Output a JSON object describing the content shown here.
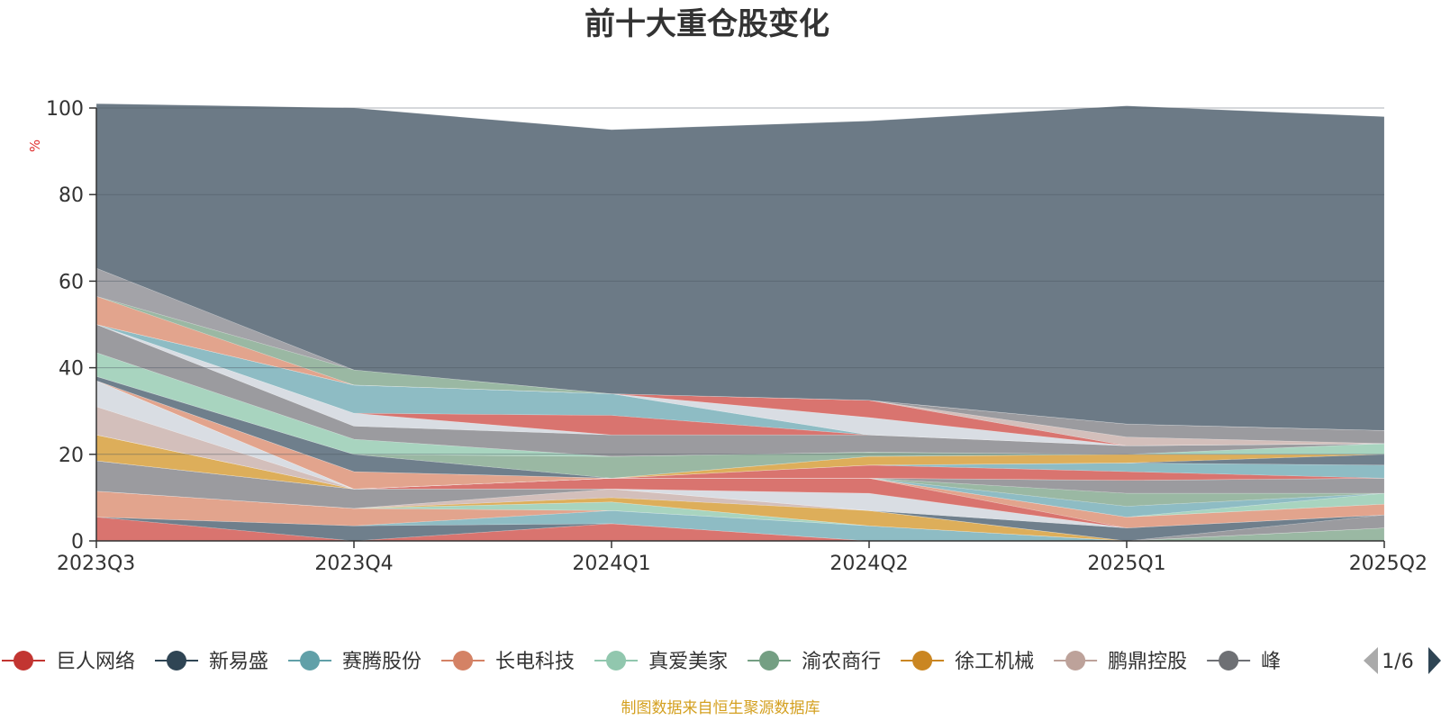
{
  "chart_data": {
    "type": "area",
    "stacked": true,
    "title": "前十大重仓股变化",
    "ylabel": "%",
    "ylim": [
      0,
      100
    ],
    "yticks": [
      0,
      20,
      40,
      60,
      80,
      100
    ],
    "grid": true,
    "categories": [
      "2023Q3",
      "2023Q4",
      "2024Q1",
      "2024Q2",
      "2025Q1",
      "2025Q2"
    ],
    "series": [
      {
        "name": "巨人网络",
        "color": "#d9746f",
        "values": [
          5.5,
          0,
          4,
          0,
          0,
          0
        ]
      },
      {
        "name": "新易盛",
        "color": "#6f7f8c",
        "values": [
          0,
          3.5,
          0,
          0,
          0,
          0
        ]
      },
      {
        "name": "赛腾股份",
        "color": "#8ebcc4",
        "values": [
          0,
          0,
          3,
          3.5,
          0,
          0
        ]
      },
      {
        "name": "长电科技",
        "color": "#e2a48d",
        "values": [
          6,
          4,
          0,
          0,
          0,
          0
        ]
      },
      {
        "name": "真爱美家",
        "color": "#a8d4bf",
        "values": [
          0,
          0,
          2,
          0,
          0,
          0
        ]
      },
      {
        "name": "渝农商行",
        "color": "#9ab8a3",
        "values": [
          0,
          0,
          0,
          0,
          0,
          3
        ]
      },
      {
        "name": "徐工机械",
        "color": "#ddae5a",
        "values": [
          0,
          0,
          1,
          3.5,
          0,
          0
        ]
      },
      {
        "name": "鹏鼎控股",
        "color": "#d3bfbb",
        "values": [
          0,
          0,
          2,
          0,
          0,
          0
        ]
      },
      {
        "name": "峰岹科技",
        "color": "#9b9b9f",
        "values": [
          7,
          4.5,
          0,
          0,
          0,
          3
        ]
      },
      {
        "name": "",
        "color": "#6f7f8c",
        "values": [
          0,
          0,
          0,
          0,
          3,
          0
        ]
      },
      {
        "name": "",
        "color": "#d9dde3",
        "values": [
          0,
          0,
          0,
          4,
          0,
          0
        ]
      },
      {
        "name": "",
        "color": "#d9746f",
        "values": [
          0,
          0,
          2.5,
          3.5,
          0,
          0
        ]
      },
      {
        "name": "",
        "color": "#e2a48d",
        "values": [
          0,
          0,
          0,
          0,
          2.5,
          2.5
        ]
      },
      {
        "name": "",
        "color": "#ddae5a",
        "values": [
          6,
          0,
          0,
          0,
          0,
          0
        ]
      },
      {
        "name": "",
        "color": "#a8d4bf",
        "values": [
          0,
          0,
          0,
          0,
          0,
          2.5
        ]
      },
      {
        "name": "",
        "color": "#8ebcc4",
        "values": [
          0,
          0,
          0,
          0,
          2.5,
          0
        ]
      },
      {
        "name": "",
        "color": "#9ab8a3",
        "values": [
          0,
          0,
          0,
          0,
          3,
          0
        ]
      },
      {
        "name": "",
        "color": "#9b9b9f",
        "values": [
          0,
          0,
          0,
          0,
          3,
          3.5
        ]
      },
      {
        "name": "",
        "color": "#d3bfbb",
        "values": [
          6.5,
          0,
          0,
          0,
          0,
          0
        ]
      },
      {
        "name": "",
        "color": "#d9dde3",
        "values": [
          6,
          0,
          0,
          0,
          0,
          0
        ]
      },
      {
        "name": "",
        "color": "#d9746f",
        "values": [
          0,
          0,
          0,
          3,
          2,
          0
        ]
      },
      {
        "name": "",
        "color": "#8ebcc4",
        "values": [
          0,
          0,
          0,
          0,
          2,
          3
        ]
      },
      {
        "name": "",
        "color": "#e2a48d",
        "values": [
          0,
          4,
          0,
          0,
          0,
          0
        ]
      },
      {
        "name": "",
        "color": "#6f7f8c",
        "values": [
          0,
          0,
          0,
          0,
          0,
          2.5
        ]
      },
      {
        "name": "",
        "color": "#ddae5a",
        "values": [
          0,
          0,
          0,
          2,
          2,
          0
        ]
      },
      {
        "name": "",
        "color": "#6f7f8c",
        "values": [
          1,
          4,
          0,
          0,
          0,
          0
        ]
      },
      {
        "name": "",
        "color": "#9ab8a3",
        "values": [
          0,
          0,
          5,
          1,
          0,
          0
        ]
      },
      {
        "name": "",
        "color": "#a8d4bf",
        "values": [
          5.5,
          3.5,
          0,
          0,
          0,
          2.5
        ]
      },
      {
        "name": "",
        "color": "#9b9b9f",
        "values": [
          6.5,
          3,
          5,
          4,
          2,
          0
        ]
      },
      {
        "name": "",
        "color": "#d9dde3",
        "values": [
          0,
          3,
          0,
          0,
          0,
          0
        ]
      },
      {
        "name": "",
        "color": "#d9746f",
        "values": [
          0,
          0,
          4.5,
          0,
          0,
          0
        ]
      },
      {
        "name": "",
        "color": "#8ebcc4",
        "values": [
          0,
          6.5,
          5,
          0,
          0,
          0
        ]
      },
      {
        "name": "",
        "color": "#d9dde3",
        "values": [
          0,
          0,
          0,
          4,
          0,
          0
        ]
      },
      {
        "name": "",
        "color": "#d9746f",
        "values": [
          0,
          0,
          0,
          4,
          0,
          0
        ]
      },
      {
        "name": "",
        "color": "#d3bfbb",
        "values": [
          0,
          0,
          0,
          0,
          2,
          0
        ]
      },
      {
        "name": "",
        "color": "#9b9b9f",
        "values": [
          0,
          0,
          0,
          0,
          3,
          3
        ]
      },
      {
        "name": "",
        "color": "#e2a48d",
        "values": [
          6.5,
          0,
          0,
          0,
          0,
          0
        ]
      },
      {
        "name": "",
        "color": "#9ab8a3",
        "values": [
          0,
          3.5,
          0,
          0,
          0,
          0
        ]
      },
      {
        "name": "",
        "color": "#a3a3a8",
        "values": [
          6.5,
          0,
          0,
          0,
          0,
          0
        ]
      },
      {
        "name": "",
        "color": "#6c7a86",
        "values": [
          38,
          60.5,
          61,
          64.5,
          73.5,
          72.5
        ]
      }
    ],
    "legend": {
      "position": "bottom",
      "items": [
        {
          "name": "巨人网络",
          "color": "#c23531"
        },
        {
          "name": "新易盛",
          "color": "#2f4554"
        },
        {
          "name": "赛腾股份",
          "color": "#61a0a8"
        },
        {
          "name": "长电科技",
          "color": "#d48265"
        },
        {
          "name": "真爱美家",
          "color": "#91c7ae"
        },
        {
          "name": "渝农商行",
          "color": "#749f83"
        },
        {
          "name": "徐工机械",
          "color": "#ca8622"
        },
        {
          "name": "鹏鼎控股",
          "color": "#bda29a"
        },
        {
          "name": "峰",
          "color": "#6e7074"
        }
      ],
      "page": "1/6"
    },
    "source": "制图数据来自恒生聚源数据库"
  }
}
